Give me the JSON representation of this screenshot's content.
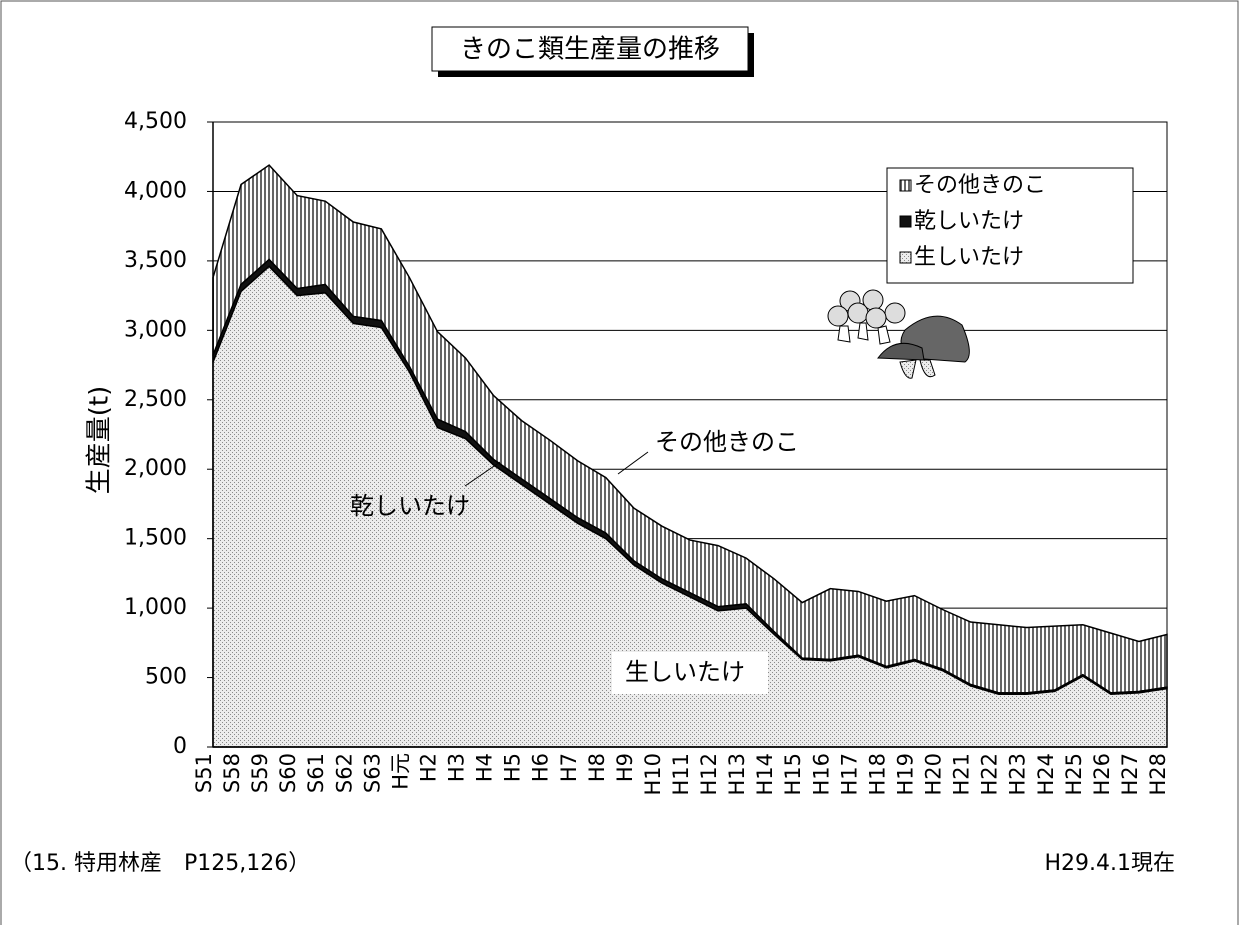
{
  "chart_data": {
    "type": "stacked_area",
    "title": "きのこ類生産量の推移",
    "y_label": "生産量(t)",
    "categories": [
      "S51",
      "S58",
      "S59",
      "S60",
      "S61",
      "S62",
      "S63",
      "H元",
      "H2",
      "H3",
      "H4",
      "H5",
      "H6",
      "H7",
      "H8",
      "H9",
      "H10",
      "H11",
      "H12",
      "H13",
      "H14",
      "H15",
      "H16",
      "H17",
      "H18",
      "H19",
      "H20",
      "H21",
      "H22",
      "H23",
      "H24",
      "H25",
      "H26",
      "H27",
      "H28"
    ],
    "series": [
      {
        "name": "生しいたけ",
        "color": "#d9d9d9",
        "values": [
          2770,
          3280,
          3460,
          3250,
          3270,
          3050,
          3020,
          2700,
          2300,
          2220,
          2030,
          1890,
          1750,
          1610,
          1500,
          1310,
          1180,
          1080,
          980,
          1000,
          810,
          630,
          620,
          650,
          570,
          620,
          550,
          440,
          380,
          380,
          400,
          510,
          380,
          390,
          420
        ]
      },
      {
        "name": "乾しいたけ",
        "color": "#111111",
        "values": [
          50,
          50,
          50,
          50,
          60,
          50,
          50,
          40,
          60,
          50,
          40,
          40,
          40,
          40,
          40,
          30,
          30,
          30,
          30,
          30,
          20,
          10,
          10,
          10,
          10,
          10,
          10,
          10,
          10,
          10,
          10,
          10,
          10,
          10,
          10
        ]
      },
      {
        "name": "その他きのこ",
        "color": "#777777",
        "values": [
          560,
          720,
          680,
          670,
          600,
          680,
          660,
          640,
          630,
          530,
          460,
          420,
          420,
          410,
          400,
          380,
          380,
          380,
          440,
          330,
          380,
          400,
          510,
          460,
          470,
          460,
          430,
          450,
          490,
          470,
          460,
          360,
          430,
          360,
          380
        ]
      }
    ],
    "ylim": [
      0,
      4500
    ],
    "yticks": [
      0,
      500,
      {
        "value": 1000,
        "label": "1,000"
      },
      {
        "value": 1500,
        "label": "1,500"
      },
      {
        "value": 2000,
        "label": "2,000"
      },
      {
        "value": 2500,
        "label": "2,500"
      },
      {
        "value": 3000,
        "label": "3,000"
      },
      {
        "value": 3500,
        "label": "3,500"
      },
      {
        "value": 4000,
        "label": "4,000"
      },
      {
        "value": 4500,
        "label": "4,500"
      }
    ],
    "grid": true,
    "legend": "upper right",
    "annotations": [
      "その他きのこ",
      "乾しいたけ",
      "生しいたけ"
    ],
    "source": "（15. 特用林産　P125,126）",
    "date_note": "H29.4.1現在"
  }
}
